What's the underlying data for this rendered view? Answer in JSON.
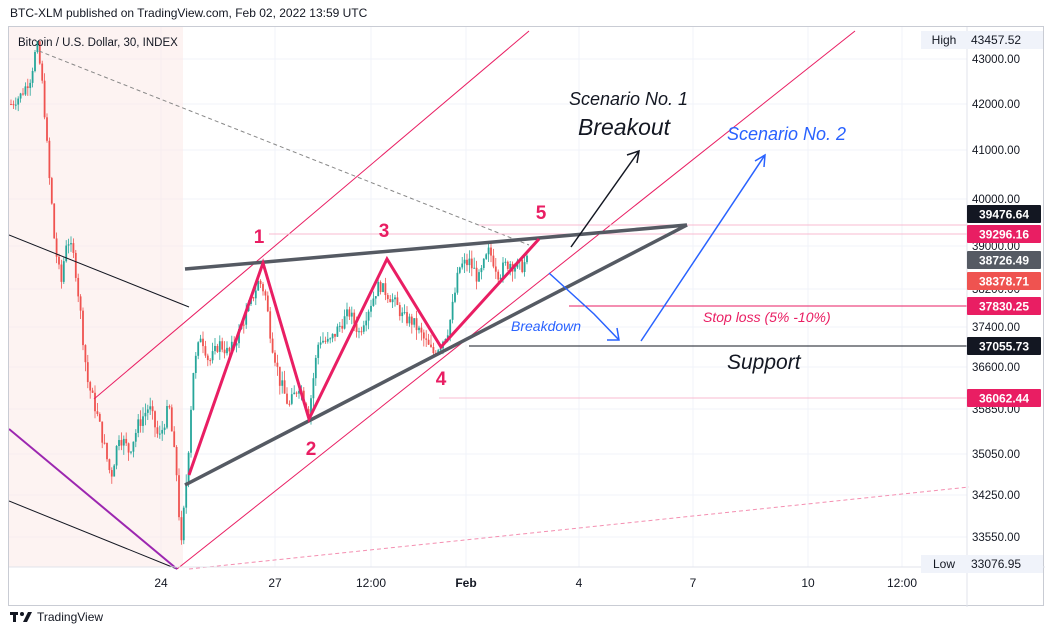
{
  "header": {
    "published": "BTC-XLM published on TradingView.com, Feb 02, 2022 13:59 UTC"
  },
  "footer": {
    "logo_icon": "tradingview-logo-icon",
    "brand": "TradingView"
  },
  "colors": {
    "candle_up": "#26a69a",
    "candle_down": "#ef5350",
    "wave_pink": "#e91e63",
    "trendline": "#555a63",
    "channel": "#e91e63",
    "scenario_blue": "#2962ff",
    "purple": "#9c27b0",
    "grid": "#f0f3fa"
  },
  "chart_data": {
    "type": "candlestick",
    "title": "Bitcoin / U.S. Dollar, 30, INDEX",
    "xlabel": "",
    "ylabel": "",
    "ylim": [
      33000,
      43800
    ],
    "x_ticks": [
      "24",
      "27",
      "12:00",
      "Feb",
      "4",
      "7",
      "10",
      "12:00"
    ],
    "y_ticks": [
      "43000.00",
      "42000.00",
      "41000.00",
      "40000.00",
      "39000.00",
      "38200.00",
      "37400.00",
      "36600.00",
      "35850.00",
      "35050.00",
      "34250.00",
      "33550.00"
    ],
    "price_labels": [
      {
        "name": "high",
        "label": "High",
        "value": "43457.52",
        "price": 43457.52
      },
      {
        "name": "level-39476",
        "value": "39476.64",
        "price": 39476.64,
        "bg": "#131722",
        "fg": "#ffffff"
      },
      {
        "name": "level-39296",
        "value": "39296.16",
        "price": 39296.16,
        "bg": "#e91e63",
        "fg": "#ffffff"
      },
      {
        "name": "last-price",
        "value": "38726.49",
        "price": 38726.49,
        "bg": "#555a63",
        "fg": "#ffffff"
      },
      {
        "name": "level-38378",
        "value": "38378.71",
        "price": 38378.71,
        "bg": "#ef5350",
        "fg": "#ffffff"
      },
      {
        "name": "stop-loss-level",
        "value": "37830.25",
        "price": 37830.25,
        "bg": "#e91e63",
        "fg": "#ffffff"
      },
      {
        "name": "support-level",
        "value": "37055.73",
        "price": 37055.73,
        "bg": "#131722",
        "fg": "#ffffff"
      },
      {
        "name": "level-36062",
        "value": "36062.44",
        "price": 36062.44,
        "bg": "#e91e63",
        "fg": "#ffffff"
      },
      {
        "name": "low",
        "label": "Low",
        "value": "33076.95",
        "price": 33076.95
      }
    ],
    "waves": [
      {
        "label": "1",
        "price": 38600
      },
      {
        "label": "2",
        "price": 35700
      },
      {
        "label": "3",
        "price": 38700
      },
      {
        "label": "4",
        "price": 36850
      },
      {
        "label": "5",
        "price": 39150
      }
    ],
    "annotations": {
      "scenario1": "Scenario No. 1",
      "breakout": "Breakout",
      "scenario2": "Scenario No. 2",
      "breakdown": "Breakdown",
      "stop_loss": "Stop loss (5% -10%)",
      "support": "Support"
    }
  }
}
